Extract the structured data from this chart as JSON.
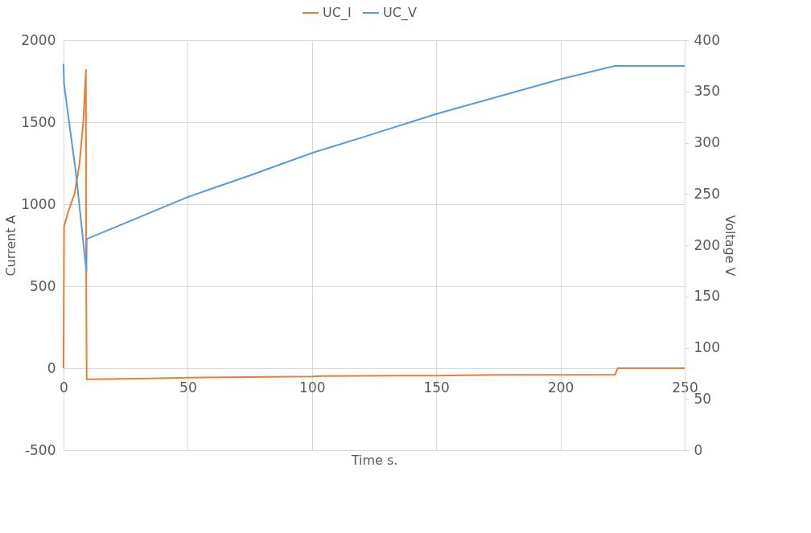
{
  "chart_data": {
    "type": "line",
    "xlabel": "Time s.",
    "ylabel": "Current A",
    "y2label": "Voltage V",
    "xlim": [
      0,
      250
    ],
    "xticks": [
      0,
      50,
      100,
      150,
      200,
      250
    ],
    "ylim": [
      -500,
      2000
    ],
    "yticks": [
      -500,
      0,
      500,
      1000,
      1500,
      2000
    ],
    "y2lim": [
      0,
      400
    ],
    "y2ticks": [
      0,
      50,
      100,
      150,
      200,
      250,
      300,
      350,
      400
    ],
    "grid": true,
    "legend": "top",
    "line_style": "solid",
    "series": [
      {
        "name": "UC_I",
        "color": "#ed7d31",
        "x": [
          0,
          0.2,
          2.3,
          4.4,
          6.4,
          8,
          9,
          9.1,
          9.3,
          18,
          35,
          50,
          75,
          100,
          104,
          135,
          150,
          175,
          222,
          223,
          250
        ],
        "values": [
          0,
          868,
          974,
          1062,
          1246,
          1518,
          1819,
          586,
          -68,
          -66,
          -62,
          -58,
          -54,
          -50,
          -48,
          -45,
          -45,
          -41,
          -39,
          0,
          0
        ]
      },
      {
        "name": "UC_V",
        "color": "#5b9bd5",
        "axis": "y2",
        "x": [
          0,
          0.2,
          5,
          9.2,
          9.3,
          50,
          75,
          100,
          120,
          150,
          200,
          222,
          250
        ],
        "values": [
          377,
          357,
          270,
          174,
          206,
          247,
          268,
          290,
          305,
          328,
          362,
          375,
          375
        ]
      }
    ]
  }
}
